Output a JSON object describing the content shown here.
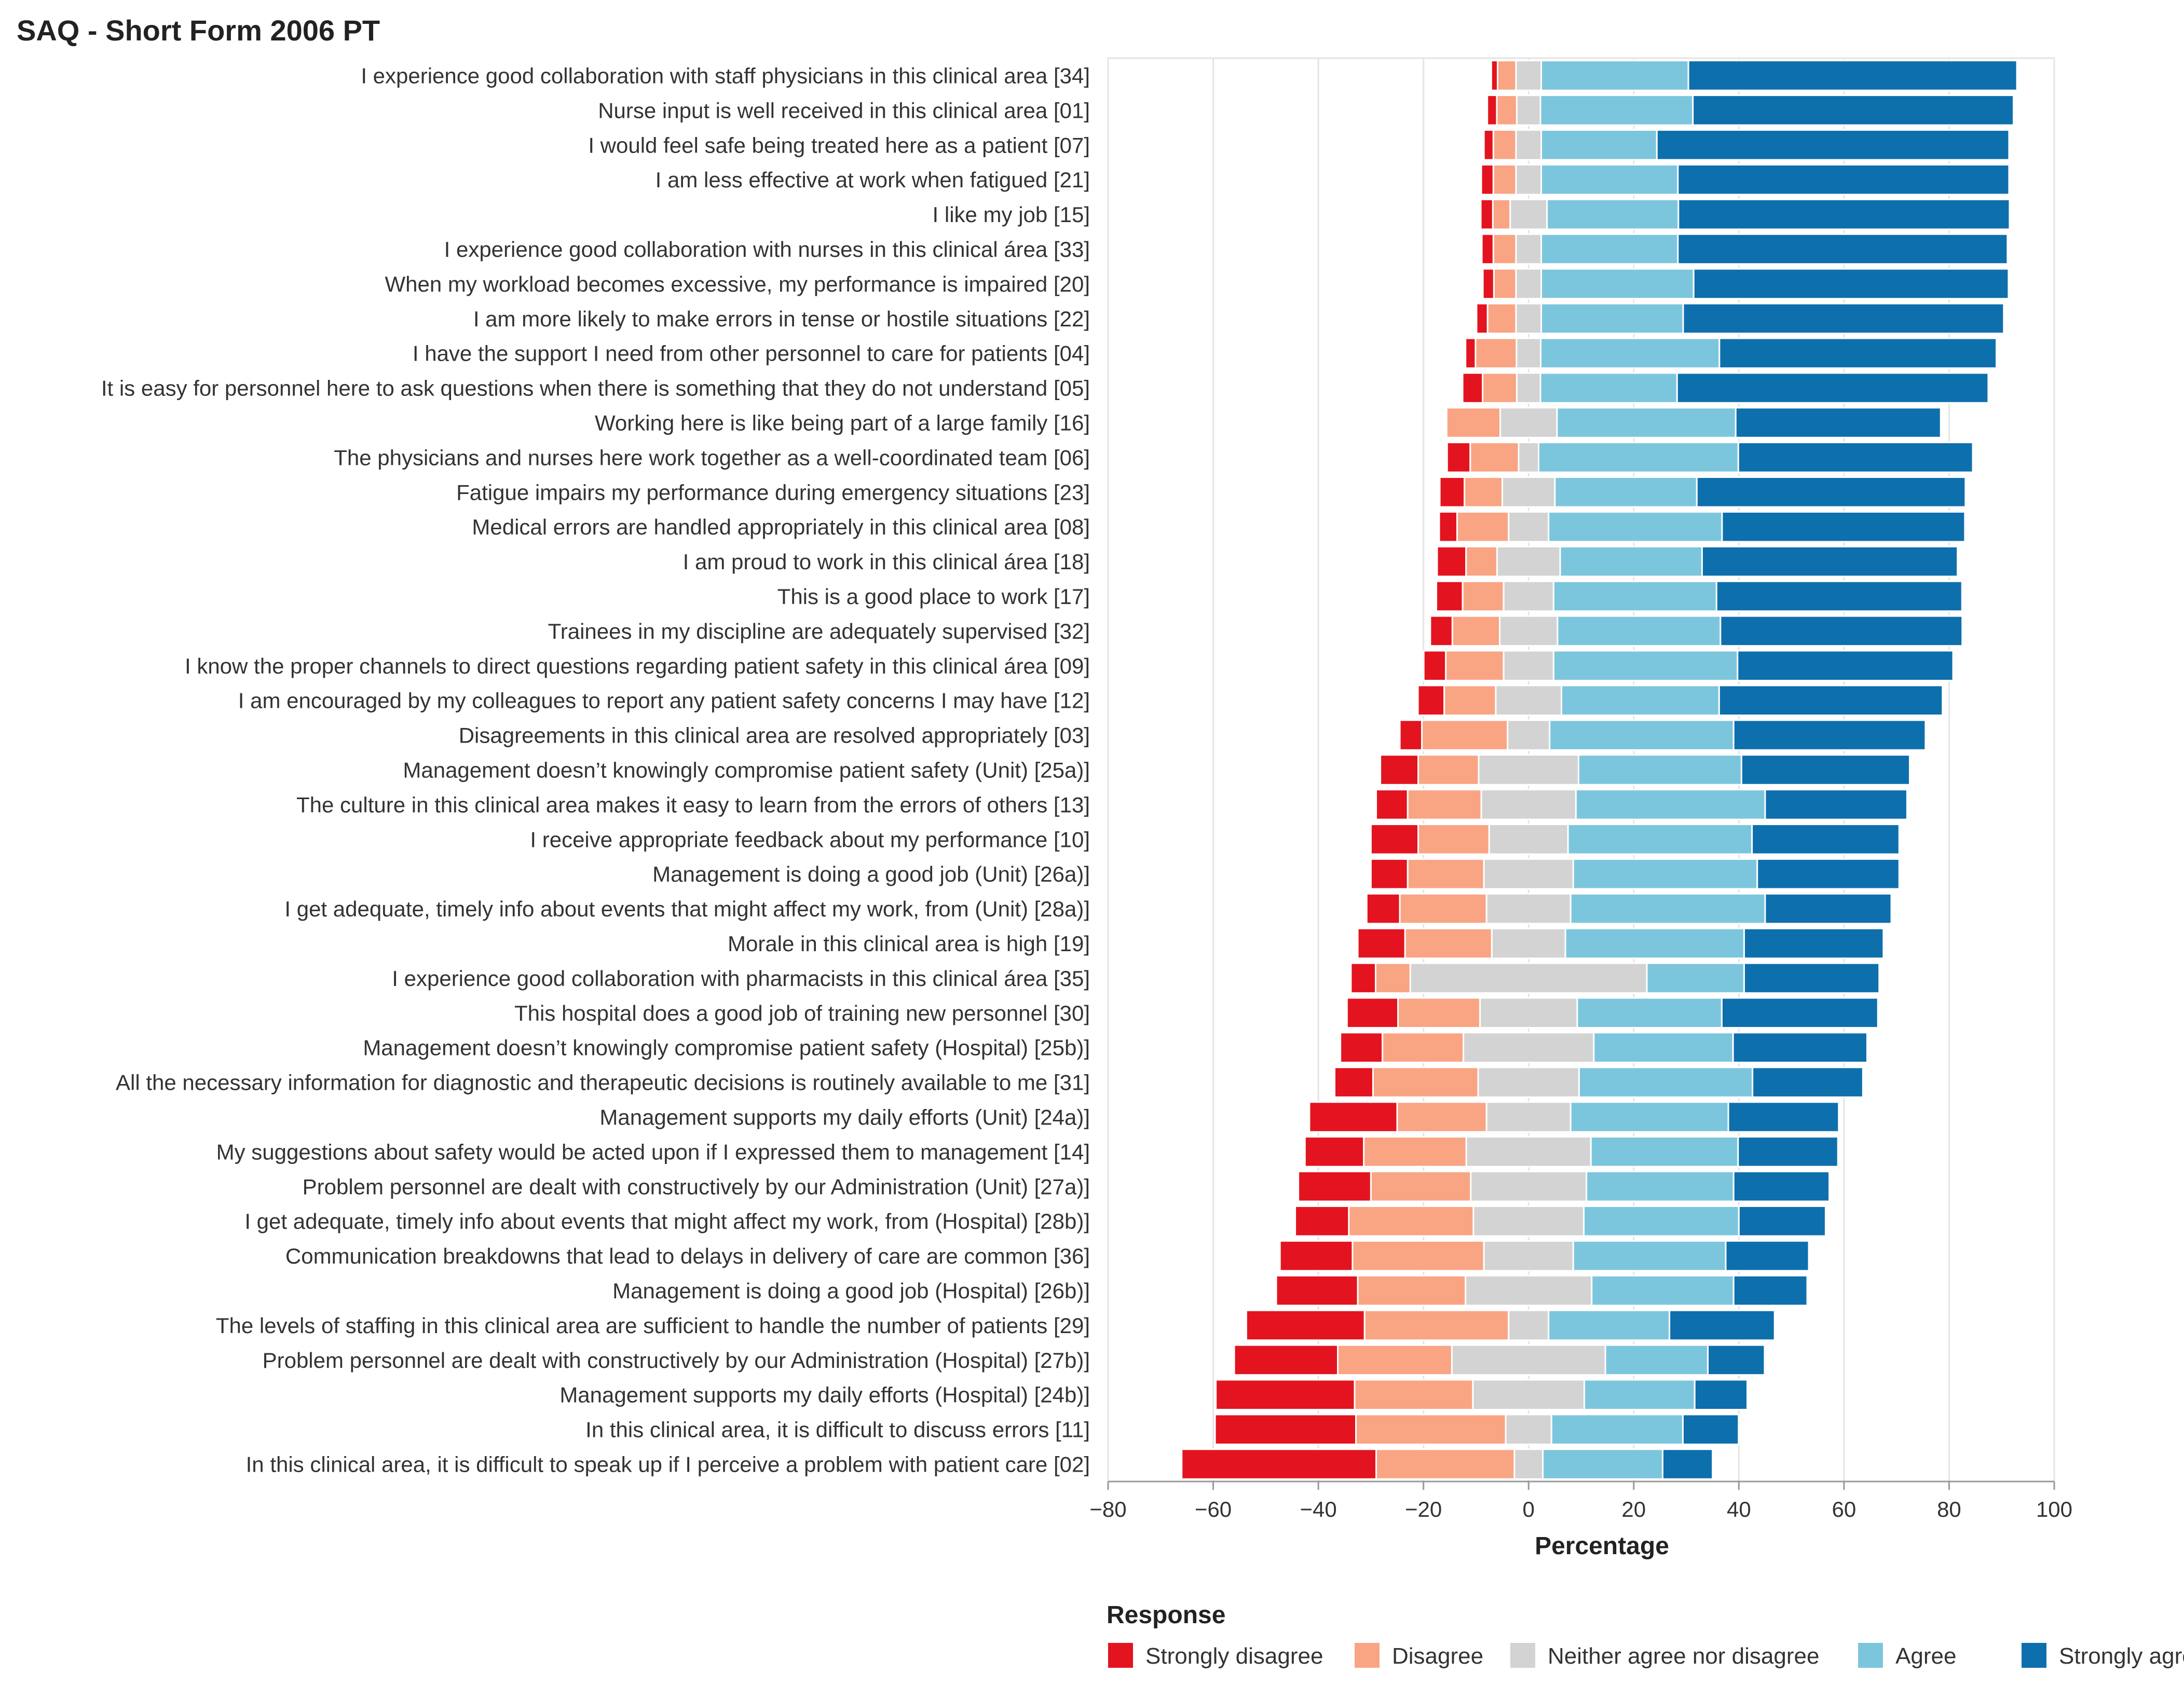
{
  "chart_data": {
    "type": "bar",
    "orientation": "horizontal",
    "stacking": "diverging",
    "title": "SAQ - Short Form 2006 PT",
    "xlabel": "Percentage",
    "xlim": [
      -80,
      100
    ],
    "xticks": [
      -80,
      -60,
      -40,
      -20,
      0,
      20,
      40,
      60,
      80,
      100
    ],
    "xtick_labels": [
      "−80",
      "−60",
      "−40",
      "−20",
      "0",
      "20",
      "40",
      "60",
      "80",
      "100"
    ],
    "grid": true,
    "legend_title": "Response",
    "legend_position": "bottom",
    "series": [
      {
        "name": "Strongly disagree",
        "color": "#e3141f"
      },
      {
        "name": "Disagree",
        "color": "#f9a583"
      },
      {
        "name": "Neither agree nor disagree",
        "color": "#d3d3d3"
      },
      {
        "name": "Agree",
        "color": "#7cc6dd"
      },
      {
        "name": "Strongly agree",
        "color": "#0e6fad"
      }
    ],
    "note": "Values per category: [strongly disagree, disagree, neither (centered on 0), agree, strongly agree] in percent",
    "categories": [
      "I experience good collaboration with staff physicians in this clinical area [34]",
      "Nurse input is well received in this clinical area [01]",
      "I would feel safe being treated here as a patient [07]",
      "I am less effective at work when fatigued [21]",
      "I like my job [15]",
      "I experience good collaboration with nurses in this clinical área [33]",
      "When my workload becomes excessive, my performance is impaired [20]",
      "I am more likely to make errors in tense or hostile situations [22]",
      "I have the support I need from other personnel to care for patients [04]",
      "It is easy for personnel here to ask questions when there is something that they do not understand [05]",
      "Working here is like being part of a large family [16]",
      "The physicians and nurses here work together as a well-coordinated team [06]",
      "Fatigue impairs my performance during emergency situations [23]",
      "Medical errors are handled appropriately in this clinical area [08]",
      "I am proud to work in this clinical área [18]",
      "This is a good place to work [17]",
      "Trainees in my discipline are adequately supervised [32]",
      "I know the proper channels to direct questions regarding patient safety in this clinical área [09]",
      "I am encouraged by my colleagues to report any patient safety concerns I may have [12]",
      "Disagreements in this clinical area are resolved appropriately [03]",
      "Management doesn’t knowingly compromise patient safety (Unit) [25a)]",
      "The culture in this clinical area makes it easy to learn from the errors of others [13]",
      "I receive appropriate feedback about my performance [10]",
      "Management is doing a good job (Unit) [26a)]",
      "I get adequate, timely info about events that might affect my work, from (Unit) [28a)]",
      "Morale in this clinical area is high [19]",
      "I experience good collaboration with pharmacists in this clinical área [35]",
      "This hospital does a good job of training new personnel [30]",
      "Management doesn’t knowingly compromise patient safety (Hospital) [25b)]",
      "All the necessary information for diagnostic and therapeutic decisions is routinely available to me [31]",
      "Management supports my daily efforts (Unit) [24a)]",
      "My suggestions about safety would be acted upon if I expressed them to management [14]",
      "Problem personnel are dealt with constructively by our Administration (Unit) [27a)]",
      "I get adequate, timely info about events that might affect my work, from (Hospital) [28b)]",
      "Communication breakdowns that lead to delays in delivery of care are common [36]",
      "Management is doing a good job (Hospital) [26b)]",
      "The levels of staffing in this clinical area are sufficient to handle the number of patients [29]",
      "Problem personnel are dealt with constructively by our Administration (Hospital) [27b)]",
      "Management supports my daily efforts (Hospital) [24b)]",
      "In this clinical area, it is difficult to discuss errors [11]",
      "In this clinical area, it is difficult to speak up if I perceive a problem with patient care [02]"
    ],
    "values": [
      [
        1.2,
        3.5,
        4.8,
        28.0,
        62.5
      ],
      [
        1.8,
        3.8,
        4.5,
        29.0,
        61.0
      ],
      [
        1.8,
        4.3,
        4.8,
        22.0,
        67.0
      ],
      [
        2.3,
        4.3,
        4.8,
        26.0,
        63.0
      ],
      [
        2.3,
        3.3,
        7.0,
        25.0,
        63.0
      ],
      [
        2.2,
        4.3,
        4.8,
        26.0,
        62.7
      ],
      [
        2.1,
        4.2,
        4.8,
        29.0,
        59.9
      ],
      [
        2.1,
        5.4,
        4.8,
        27.0,
        61.0
      ],
      [
        1.9,
        7.8,
        4.6,
        34.0,
        52.7
      ],
      [
        3.8,
        6.5,
        4.5,
        26.0,
        59.2
      ],
      [
        0.0,
        10.2,
        10.8,
        34.0,
        39.0
      ],
      [
        4.4,
        9.2,
        3.8,
        38.0,
        44.6
      ],
      [
        4.7,
        7.2,
        10.0,
        27.0,
        51.1
      ],
      [
        3.4,
        9.8,
        7.6,
        33.0,
        46.2
      ],
      [
        5.5,
        5.9,
        12.0,
        27.0,
        48.6
      ],
      [
        5.0,
        7.8,
        9.5,
        31.0,
        46.7
      ],
      [
        4.2,
        9.0,
        11.0,
        31.0,
        46.0
      ],
      [
        4.2,
        11.0,
        9.5,
        35.0,
        41.0
      ],
      [
        5.0,
        9.8,
        12.5,
        30.0,
        42.5
      ],
      [
        4.2,
        16.3,
        8.0,
        35.0,
        36.5
      ],
      [
        7.2,
        11.5,
        19.0,
        31.0,
        32.0
      ],
      [
        6.0,
        14.0,
        18.0,
        36.0,
        27.0
      ],
      [
        9.0,
        13.5,
        15.0,
        35.0,
        28.0
      ],
      [
        7.0,
        14.5,
        17.0,
        35.0,
        27.0
      ],
      [
        6.3,
        16.5,
        16.0,
        37.0,
        24.0
      ],
      [
        9.0,
        16.5,
        14.0,
        34.0,
        26.5
      ],
      [
        4.7,
        6.6,
        45.0,
        18.5,
        25.7
      ],
      [
        9.7,
        15.6,
        18.5,
        27.5,
        29.7
      ],
      [
        8.0,
        15.4,
        24.8,
        26.5,
        25.5
      ],
      [
        7.3,
        20.0,
        19.2,
        33.0,
        21.0
      ],
      [
        16.7,
        17.0,
        16.0,
        30.0,
        21.0
      ],
      [
        11.2,
        19.5,
        23.7,
        28.0,
        19.0
      ],
      [
        13.8,
        19.0,
        22.0,
        28.0,
        18.2
      ],
      [
        10.2,
        23.7,
        21.0,
        29.5,
        16.5
      ],
      [
        13.8,
        25.0,
        17.0,
        29.0,
        15.8
      ],
      [
        15.5,
        20.5,
        24.0,
        27.0,
        14.0
      ],
      [
        22.5,
        27.4,
        7.6,
        23.0,
        20.0
      ],
      [
        19.7,
        21.7,
        29.2,
        19.5,
        10.8
      ],
      [
        26.4,
        22.5,
        21.2,
        21.0,
        10.0
      ],
      [
        26.8,
        28.5,
        8.7,
        25.0,
        10.6
      ],
      [
        37.0,
        26.3,
        5.4,
        22.8,
        9.5
      ]
    ]
  },
  "legend": {
    "items": [
      {
        "label": "Strongly disagree",
        "color": "#e3141f"
      },
      {
        "label": "Disagree",
        "color": "#f9a583"
      },
      {
        "label": "Neither agree nor disagree",
        "color": "#d3d3d3"
      },
      {
        "label": "Agree",
        "color": "#7cc6dd"
      },
      {
        "label": "Strongly agree",
        "color": "#0e6fad"
      }
    ]
  }
}
